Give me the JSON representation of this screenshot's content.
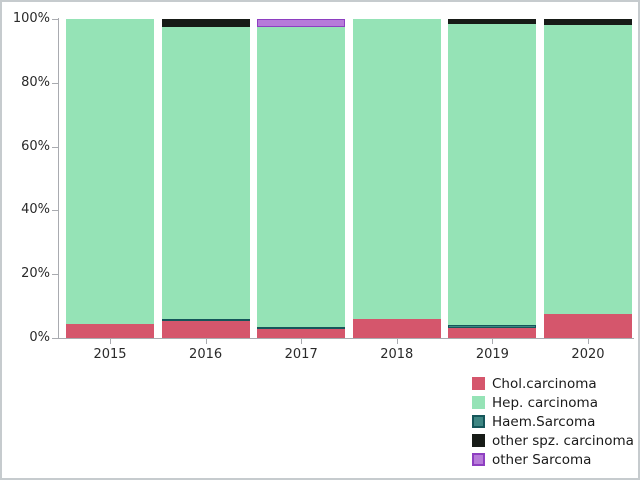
{
  "chart_data": {
    "type": "bar",
    "stacking": "percent",
    "title": "",
    "xlabel": "",
    "ylabel": "",
    "categories": [
      "2015",
      "2016",
      "2017",
      "2018",
      "2019",
      "2020"
    ],
    "series": [
      {
        "name": "Chol.carcinoma",
        "color": "#d5566c",
        "border": "#d5566c",
        "values": [
          4.3,
          5.2,
          2.7,
          6.1,
          3.1,
          7.5
        ]
      },
      {
        "name": "Haem.Sarcoma",
        "color": "#3e8683",
        "border": "#15565a",
        "values": [
          0.0,
          0.8,
          0.6,
          0.0,
          0.9,
          0.0
        ]
      },
      {
        "name": "Hep. carcinoma",
        "color": "#95e3b6",
        "border": "#95e3b6",
        "values": [
          95.7,
          91.5,
          94.2,
          93.9,
          94.4,
          90.5
        ]
      },
      {
        "name": "other spz. carcinoma",
        "color": "#171b17",
        "border": "#171b17",
        "values": [
          0.0,
          2.5,
          0.0,
          0.0,
          1.6,
          2.0
        ]
      },
      {
        "name": "other Sarcoma",
        "color": "#b77bd9",
        "border": "#8e3fc1",
        "values": [
          0.0,
          0.0,
          2.5,
          0.0,
          0.0,
          0.0
        ]
      }
    ],
    "y_ticks": [
      "0%",
      "20%",
      "40%",
      "60%",
      "80%",
      "100%"
    ],
    "ylim": [
      0,
      100
    ],
    "grid": false,
    "legend_position": "bottom-right"
  },
  "legend": {
    "items": [
      {
        "label": "Chol.carcinoma",
        "color": "#d5566c",
        "border": "#d5566c"
      },
      {
        "label": "Hep. carcinoma",
        "color": "#95e3b6",
        "border": "#95e3b6"
      },
      {
        "label": "Haem.Sarcoma",
        "color": "#3e8683",
        "border": "#15565a"
      },
      {
        "label": "other spz. carcinoma",
        "color": "#171b17",
        "border": "#171b17"
      },
      {
        "label": "other Sarcoma",
        "color": "#b77bd9",
        "border": "#8e3fc1"
      }
    ]
  },
  "axis_colors": {
    "line": "#a9abb0",
    "label": "#2a2a2a"
  }
}
